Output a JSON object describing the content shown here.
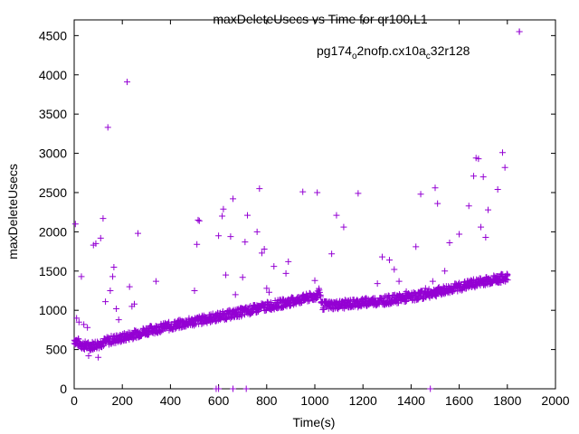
{
  "chart_data": {
    "type": "scatter",
    "title": "maxDeleteUsecs vs Time for qr100.L1",
    "xlabel": "Time(s)",
    "ylabel": "maxDeleteUsecs",
    "xlim": [
      0,
      2000
    ],
    "ylim": [
      0,
      4700
    ],
    "xticks": [
      "0",
      "200",
      "400",
      "600",
      "800",
      "1000",
      "1200",
      "1400",
      "1600",
      "1800",
      "2000"
    ],
    "yticks": [
      "0",
      "500",
      "1000",
      "1500",
      "2000",
      "2500",
      "3000",
      "3500",
      "4000",
      "4500"
    ],
    "grid": false,
    "legend_position": "top-right",
    "series": [
      {
        "name": "pg174_o2nofp.cx10a_c32r128",
        "name_parts": {
          "p1": "pg174",
          "s1": "o",
          "p2": "2nofp.cx10a",
          "s2": "c",
          "p3": "32r128"
        },
        "color": "#9400d3",
        "marker": "plus",
        "trend": [
          {
            "x": 0,
            "y": 620
          },
          {
            "x": 30,
            "y": 560
          },
          {
            "x": 60,
            "y": 540
          },
          {
            "x": 100,
            "y": 570
          },
          {
            "x": 150,
            "y": 620
          },
          {
            "x": 200,
            "y": 650
          },
          {
            "x": 300,
            "y": 740
          },
          {
            "x": 400,
            "y": 800
          },
          {
            "x": 500,
            "y": 860
          },
          {
            "x": 600,
            "y": 920
          },
          {
            "x": 700,
            "y": 980
          },
          {
            "x": 800,
            "y": 1050
          },
          {
            "x": 900,
            "y": 1110
          },
          {
            "x": 1000,
            "y": 1180
          },
          {
            "x": 1020,
            "y": 1230
          },
          {
            "x": 1030,
            "y": 1060
          },
          {
            "x": 1100,
            "y": 1070
          },
          {
            "x": 1200,
            "y": 1100
          },
          {
            "x": 1300,
            "y": 1130
          },
          {
            "x": 1400,
            "y": 1170
          },
          {
            "x": 1500,
            "y": 1230
          },
          {
            "x": 1600,
            "y": 1300
          },
          {
            "x": 1700,
            "y": 1370
          },
          {
            "x": 1800,
            "y": 1420
          }
        ],
        "outliers": [
          {
            "x": 5,
            "y": 2100
          },
          {
            "x": 10,
            "y": 900
          },
          {
            "x": 20,
            "y": 850
          },
          {
            "x": 30,
            "y": 1430
          },
          {
            "x": 40,
            "y": 820
          },
          {
            "x": 55,
            "y": 780
          },
          {
            "x": 60,
            "y": 420
          },
          {
            "x": 80,
            "y": 1830
          },
          {
            "x": 90,
            "y": 1850
          },
          {
            "x": 100,
            "y": 400
          },
          {
            "x": 110,
            "y": 1920
          },
          {
            "x": 120,
            "y": 2170
          },
          {
            "x": 130,
            "y": 1110
          },
          {
            "x": 140,
            "y": 3330
          },
          {
            "x": 150,
            "y": 1250
          },
          {
            "x": 160,
            "y": 1430
          },
          {
            "x": 165,
            "y": 1550
          },
          {
            "x": 175,
            "y": 1020
          },
          {
            "x": 185,
            "y": 880
          },
          {
            "x": 220,
            "y": 3910
          },
          {
            "x": 230,
            "y": 1300
          },
          {
            "x": 240,
            "y": 1050
          },
          {
            "x": 250,
            "y": 1080
          },
          {
            "x": 265,
            "y": 1980
          },
          {
            "x": 340,
            "y": 1370
          },
          {
            "x": 500,
            "y": 1250
          },
          {
            "x": 510,
            "y": 1840
          },
          {
            "x": 515,
            "y": 2150
          },
          {
            "x": 520,
            "y": 2140
          },
          {
            "x": 590,
            "y": 0
          },
          {
            "x": 600,
            "y": 0
          },
          {
            "x": 600,
            "y": 1950
          },
          {
            "x": 615,
            "y": 2200
          },
          {
            "x": 620,
            "y": 2290
          },
          {
            "x": 630,
            "y": 1450
          },
          {
            "x": 650,
            "y": 1940
          },
          {
            "x": 660,
            "y": 2420
          },
          {
            "x": 660,
            "y": 0
          },
          {
            "x": 670,
            "y": 1200
          },
          {
            "x": 700,
            "y": 1420
          },
          {
            "x": 710,
            "y": 1870
          },
          {
            "x": 715,
            "y": 0
          },
          {
            "x": 720,
            "y": 2210
          },
          {
            "x": 760,
            "y": 2000
          },
          {
            "x": 770,
            "y": 2550
          },
          {
            "x": 780,
            "y": 1730
          },
          {
            "x": 790,
            "y": 1780
          },
          {
            "x": 800,
            "y": 1280
          },
          {
            "x": 810,
            "y": 1230
          },
          {
            "x": 830,
            "y": 1560
          },
          {
            "x": 880,
            "y": 1470
          },
          {
            "x": 890,
            "y": 1620
          },
          {
            "x": 950,
            "y": 2510
          },
          {
            "x": 1000,
            "y": 1380
          },
          {
            "x": 1010,
            "y": 2500
          },
          {
            "x": 1070,
            "y": 1720
          },
          {
            "x": 1090,
            "y": 2210
          },
          {
            "x": 1120,
            "y": 2060
          },
          {
            "x": 1180,
            "y": 2490
          },
          {
            "x": 1260,
            "y": 1340
          },
          {
            "x": 1280,
            "y": 1680
          },
          {
            "x": 1310,
            "y": 1640
          },
          {
            "x": 1330,
            "y": 1520
          },
          {
            "x": 1350,
            "y": 1370
          },
          {
            "x": 1380,
            "y": 1240
          },
          {
            "x": 1420,
            "y": 1810
          },
          {
            "x": 1440,
            "y": 2480
          },
          {
            "x": 1460,
            "y": 1280
          },
          {
            "x": 1480,
            "y": 0
          },
          {
            "x": 1490,
            "y": 1370
          },
          {
            "x": 1500,
            "y": 2560
          },
          {
            "x": 1510,
            "y": 2360
          },
          {
            "x": 1540,
            "y": 1500
          },
          {
            "x": 1560,
            "y": 1860
          },
          {
            "x": 1600,
            "y": 1970
          },
          {
            "x": 1640,
            "y": 2330
          },
          {
            "x": 1660,
            "y": 2710
          },
          {
            "x": 1670,
            "y": 2940
          },
          {
            "x": 1680,
            "y": 2930
          },
          {
            "x": 1690,
            "y": 2060
          },
          {
            "x": 1700,
            "y": 2700
          },
          {
            "x": 1710,
            "y": 1930
          },
          {
            "x": 1720,
            "y": 2280
          },
          {
            "x": 1760,
            "y": 2540
          },
          {
            "x": 1780,
            "y": 3010
          },
          {
            "x": 1790,
            "y": 2820
          },
          {
            "x": 1850,
            "y": 4550
          }
        ]
      }
    ]
  }
}
